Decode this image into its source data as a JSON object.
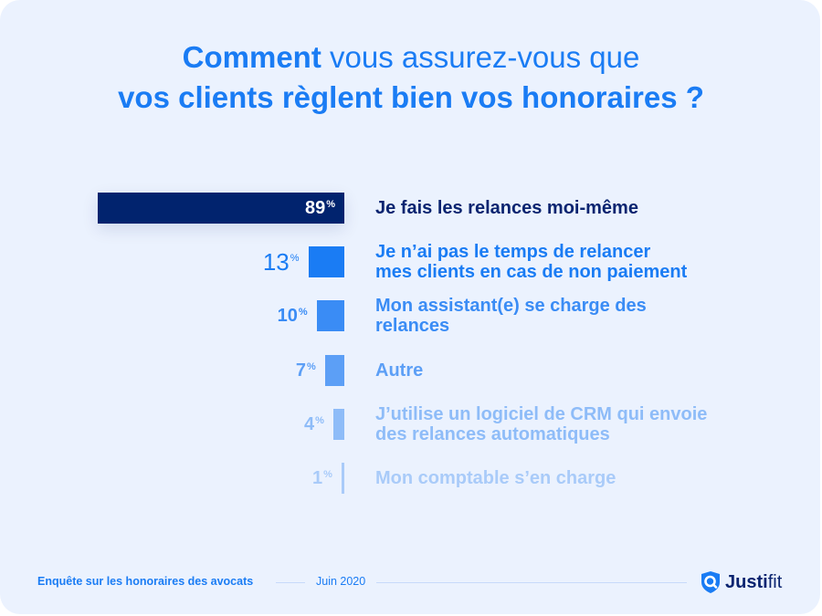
{
  "title": {
    "line1_bold": "Comment",
    "line1_rest": " vous assurez-vous que",
    "line2": "vos clients règlent bien vos honoraires ?"
  },
  "chart_data": {
    "type": "bar",
    "orientation": "horizontal",
    "title": "Comment vous assurez-vous que vos clients règlent bien vos honoraires ?",
    "unit": "%",
    "categories": [
      "Je fais les relances moi-même",
      "Je n’ai pas le temps de relancer mes clients en cas de non paiement",
      "Mon assistant(e) se charge des relances",
      "Autre",
      "J’utilise un logiciel de CRM qui envoie des relances automatiques",
      "Mon comptable s’en charge"
    ],
    "values": [
      89,
      13,
      10,
      7,
      4,
      1
    ],
    "value_labels": [
      "89",
      "13",
      "10",
      "7",
      "4",
      "1"
    ],
    "percent_sign": "%",
    "bar_colors": [
      "#01236e",
      "#1a7cf4",
      "#3a8cf5",
      "#5c9ff6",
      "#8ebcf8",
      "#a9cbf9"
    ],
    "value_colors": [
      "#ffffff",
      "#1a7cf4",
      "#3a8cf5",
      "#5c9ff6",
      "#8ebcf8",
      "#a9cbf9"
    ],
    "label_colors": [
      "#0a2470",
      "#1a7cf4",
      "#3a8cf5",
      "#5c9ff6",
      "#8ebcf8",
      "#a9cbf9"
    ],
    "label_lines": [
      [
        "Je fais les relances moi-même"
      ],
      [
        "Je n’ai pas le temps de relancer",
        "mes clients en cas de non paiement"
      ],
      [
        "Mon assistant(e) se charge des",
        "relances"
      ],
      [
        "Autre"
      ],
      [
        "J’utilise un logiciel de CRM qui envoie",
        "des relances automatiques"
      ],
      [
        "Mon comptable s’en charge"
      ]
    ],
    "xlim": [
      0,
      89
    ]
  },
  "footer": {
    "survey": "Enquête sur les honoraires des avocats",
    "date": "Juin 2020",
    "brand_bold": "Justi",
    "brand_light": "fit"
  }
}
